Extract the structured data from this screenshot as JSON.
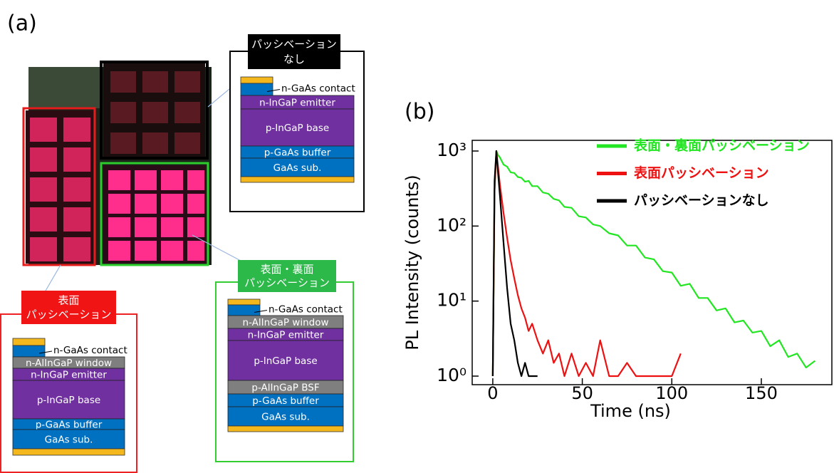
{
  "panel_a": {
    "label": "(a)",
    "structures": [
      {
        "title_lines": [
          "パッシベーション",
          "なし"
        ],
        "contact_label": "n-GaAs contact",
        "layers": [
          "n-InGaP emitter",
          "p-InGaP base",
          "p-GaAs buffer",
          "GaAs sub."
        ]
      },
      {
        "title_lines": [
          "表面・裏面",
          "パッシベーション"
        ],
        "contact_label": "n-GaAs contact",
        "layers": [
          "n-AlInGaP window",
          "n-InGaP emitter",
          "p-InGaP base",
          "p-AlInGaP BSF",
          "p-GaAs buffer",
          "GaAs sub."
        ]
      },
      {
        "title_lines": [
          "表面",
          "パッシベーション"
        ],
        "contact_label": "n-GaAs contact",
        "layers": [
          "n-AlInGaP window",
          "n-InGaP emitter",
          "p-InGaP base",
          "p-GaAs buffer",
          "GaAs sub."
        ]
      }
    ]
  },
  "chart_data": {
    "type": "line",
    "panel_label": "(b)",
    "x_label": "Time (ns)",
    "y_label": "PL Intensity (counts)",
    "log_y": true,
    "xlim": [
      -11.5,
      189.4
    ],
    "ylim": [
      0.769,
      1388
    ],
    "xticks": [
      0,
      50,
      100,
      150
    ],
    "yticks": [
      {
        "value": 1,
        "label": "10⁰"
      },
      {
        "value": 10,
        "label": "10¹"
      },
      {
        "value": 100,
        "label": "10²"
      },
      {
        "value": 1000,
        "label": "10³"
      }
    ],
    "legend": "upper right",
    "x": [
      0,
      1,
      2,
      3,
      4,
      6,
      8,
      10,
      12,
      14,
      16,
      18,
      20,
      22,
      25,
      28,
      31,
      34,
      37,
      40,
      44,
      48,
      52,
      56,
      60,
      65,
      70,
      75,
      80,
      85,
      90,
      95,
      100,
      105,
      110,
      115,
      120,
      125,
      130,
      135,
      140,
      145,
      150,
      155,
      160,
      165,
      170,
      175,
      180
    ],
    "series": [
      {
        "name": "表面・裏面パッシベーション",
        "color": "#22e622",
        "values": [
          1,
          300,
          1000,
          880,
          820,
          660,
          620,
          520,
          510,
          450,
          440,
          390,
          400,
          340,
          340,
          280,
          270,
          230,
          220,
          180,
          175,
          135,
          130,
          105,
          100,
          80,
          75,
          55,
          55,
          38,
          36,
          25,
          24,
          16,
          17,
          11,
          11,
          7.5,
          8,
          5.2,
          5.5,
          3.8,
          4,
          2.5,
          3,
          1.8,
          2,
          1.3,
          1.6
        ]
      },
      {
        "name": "表面パッシベーション",
        "color": "#ee1111",
        "values": [
          1,
          300,
          1000,
          600,
          350,
          150,
          70,
          35,
          20,
          12,
          8,
          6,
          4,
          5,
          3,
          2,
          3,
          1.5,
          2,
          1,
          2,
          1,
          1.5,
          1,
          3,
          1,
          1,
          1.5,
          1,
          1,
          1,
          1,
          1,
          2,
          null,
          null,
          null,
          null,
          null,
          null,
          null,
          null,
          null,
          null,
          null,
          null,
          null,
          null,
          null
        ]
      },
      {
        "name": "パッシベーションなし",
        "color": "#000000",
        "values": [
          1,
          400,
          1000,
          500,
          250,
          60,
          15,
          5,
          3,
          1.5,
          1,
          1.5,
          1,
          1,
          1,
          null,
          null,
          null,
          null,
          null,
          null,
          null,
          null,
          null,
          null,
          null,
          null,
          null,
          null,
          null,
          null,
          null,
          null,
          null,
          null,
          null,
          null,
          null,
          null,
          null,
          null,
          null,
          null,
          null,
          null,
          null,
          null,
          null,
          null
        ]
      }
    ]
  }
}
